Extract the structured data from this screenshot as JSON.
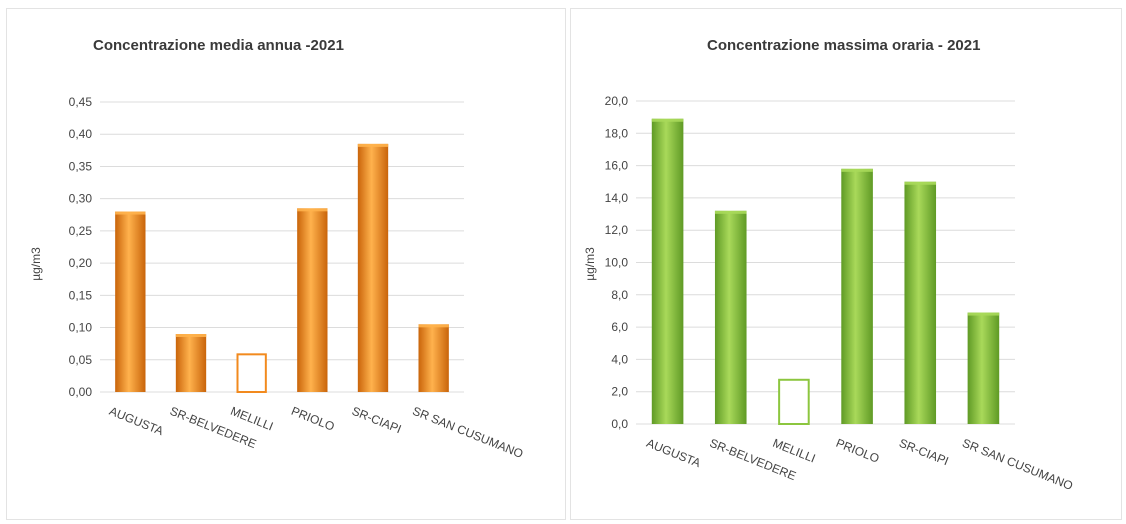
{
  "chart_data": [
    {
      "type": "bar",
      "title": "Concentrazione media annua -2021",
      "ylabel": "µg/m3",
      "xlabel": "",
      "categories": [
        "AUGUSTA",
        "SR-BELVEDERE",
        "MELILLI",
        "PRIOLO",
        "SR-CIAPI",
        "SR SAN CUSUMANO"
      ],
      "values": [
        0.28,
        0.09,
        0.06,
        0.285,
        0.385,
        0.105
      ],
      "hollow": [
        false,
        false,
        true,
        false,
        false,
        false
      ],
      "ylim": [
        0,
        0.45
      ],
      "yticks": [
        "0,00",
        "0,05",
        "0,10",
        "0,15",
        "0,20",
        "0,25",
        "0,30",
        "0,35",
        "0,40",
        "0,45"
      ],
      "grid": true,
      "color": "#f28a1e",
      "color_light": "#ffb24d",
      "color_dark": "#c9640a"
    },
    {
      "type": "bar",
      "title": "Concentrazione massima oraria - 2021",
      "ylabel": "µg/m3",
      "xlabel": "",
      "categories": [
        "AUGUSTA",
        "SR-BELVEDERE",
        "MELILLI",
        "PRIOLO",
        "SR-CIAPI",
        "SR SAN CUSUMANO"
      ],
      "values": [
        18.9,
        13.2,
        2.8,
        15.8,
        15.0,
        6.9
      ],
      "hollow": [
        false,
        false,
        true,
        false,
        false,
        false
      ],
      "ylim": [
        0,
        20
      ],
      "yticks": [
        "0,0",
        "2,0",
        "4,0",
        "6,0",
        "8,0",
        "10,0",
        "12,0",
        "14,0",
        "16,0",
        "18,0",
        "20,0"
      ],
      "grid": true,
      "color": "#8cc63f",
      "color_light": "#a9d95a",
      "color_dark": "#5f9a25"
    }
  ]
}
